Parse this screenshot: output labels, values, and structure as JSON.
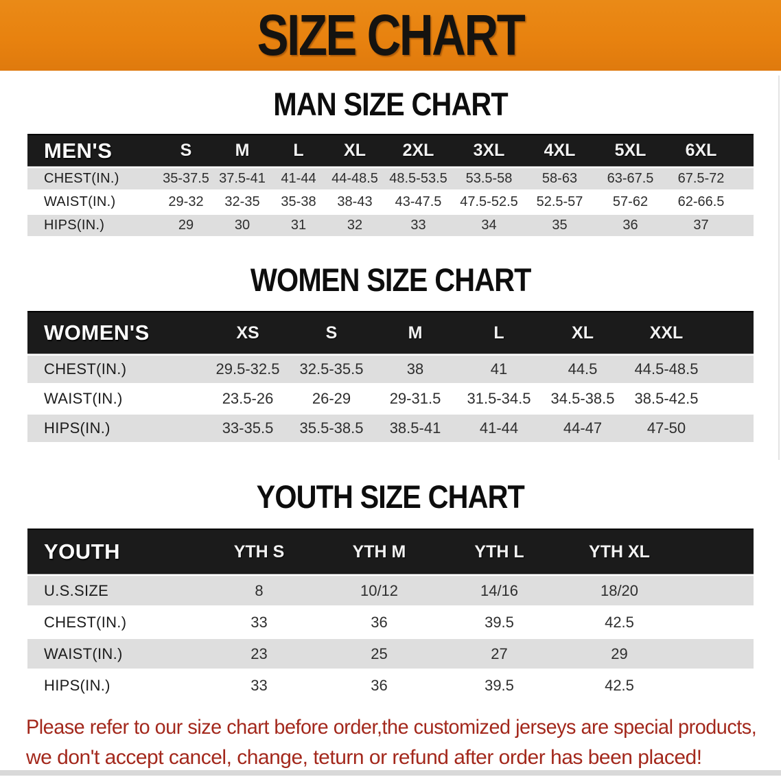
{
  "banner": {
    "title": "SIZE CHART"
  },
  "colors": {
    "banner_bg": "#E8820F",
    "table_header_bg": "#1B1B1B",
    "row_gray": "#DEDEDE",
    "footer_text": "#A3281C"
  },
  "sections": [
    {
      "heading": "MAN SIZE CHART",
      "table": {
        "label": "MEN'S",
        "columns": [
          "S",
          "M",
          "L",
          "XL",
          "2XL",
          "3XL",
          "4XL",
          "5XL",
          "6XL"
        ],
        "rows": [
          {
            "label": "CHEST(IN.)",
            "values": [
              "35-37.5",
              "37.5-41",
              "41-44",
              "44-48.5",
              "48.5-53.5",
              "53.5-58",
              "58-63",
              "63-67.5",
              "67.5-72"
            ]
          },
          {
            "label": "WAIST(IN.)",
            "values": [
              "29-32",
              "32-35",
              "35-38",
              "38-43",
              "43-47.5",
              "47.5-52.5",
              "52.5-57",
              "57-62",
              "62-66.5"
            ]
          },
          {
            "label": "HIPS(IN.)",
            "values": [
              "29",
              "30",
              "31",
              "32",
              "33",
              "34",
              "35",
              "36",
              "37"
            ]
          }
        ]
      }
    },
    {
      "heading": "WOMEN SIZE CHART",
      "table": {
        "label": "WOMEN'S",
        "columns": [
          "XS",
          "S",
          "M",
          "L",
          "XL",
          "XXL"
        ],
        "rows": [
          {
            "label": "CHEST(IN.)",
            "values": [
              "29.5-32.5",
              "32.5-35.5",
              "38",
              "41",
              "44.5",
              "44.5-48.5"
            ]
          },
          {
            "label": "WAIST(IN.)",
            "values": [
              "23.5-26",
              "26-29",
              "29-31.5",
              "31.5-34.5",
              "34.5-38.5",
              "38.5-42.5"
            ]
          },
          {
            "label": "HIPS(IN.)",
            "values": [
              "33-35.5",
              "35.5-38.5",
              "38.5-41",
              "41-44",
              "44-47",
              "47-50"
            ]
          }
        ]
      }
    },
    {
      "heading": "YOUTH SIZE CHART",
      "table": {
        "label": "YOUTH",
        "columns": [
          "YTH S",
          "YTH M",
          "YTH L",
          "YTH XL"
        ],
        "rows": [
          {
            "label": "U.S.SIZE",
            "values": [
              "8",
              "10/12",
              "14/16",
              "18/20"
            ]
          },
          {
            "label": "CHEST(IN.)",
            "values": [
              "33",
              "36",
              "39.5",
              "42.5"
            ]
          },
          {
            "label": "WAIST(IN.)",
            "values": [
              "23",
              "25",
              "27",
              "29"
            ]
          },
          {
            "label": "HIPS(IN.)",
            "values": [
              "33",
              "36",
              "39.5",
              "42.5"
            ]
          }
        ]
      }
    }
  ],
  "footer": {
    "line1": "Please refer to our size chart before order,the customized jerseys are special products,",
    "line2": "we don't accept cancel, change, teturn or refund after order has been placed!"
  }
}
